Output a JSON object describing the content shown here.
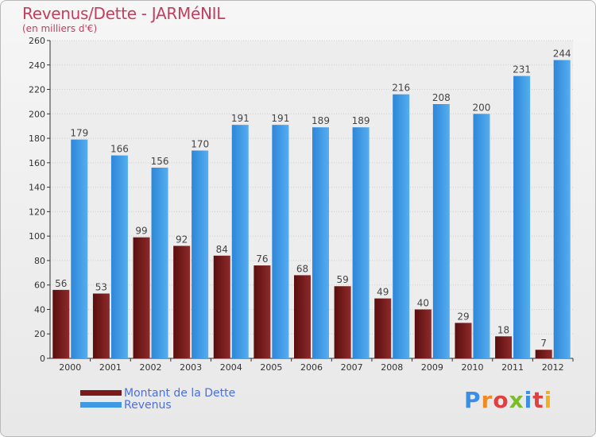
{
  "title": "Revenus/Dette - JARMéNIL",
  "subtitle": "(en milliers d'€)",
  "logo": {
    "text": "Proxiti",
    "letters": [
      "P",
      "r",
      "o",
      "x",
      "i",
      "t",
      "i"
    ],
    "colors": [
      "#3a8ee6",
      "#f08a24",
      "#e04040",
      "#7cbc2a",
      "#3a8ee6",
      "#e04040",
      "#f0b020"
    ]
  },
  "chart_data": {
    "type": "bar",
    "categories": [
      "2000",
      "2001",
      "2002",
      "2003",
      "2004",
      "2005",
      "2006",
      "2007",
      "2008",
      "2009",
      "2010",
      "2011",
      "2012"
    ],
    "series": [
      {
        "name": "Montant de la Dette",
        "color": "#7a1a1a",
        "values": [
          56,
          53,
          99,
          92,
          84,
          76,
          68,
          59,
          49,
          40,
          29,
          18,
          7
        ]
      },
      {
        "name": "Revenus",
        "color": "#3f9ae3",
        "values": [
          179,
          166,
          156,
          170,
          191,
          191,
          189,
          189,
          216,
          208,
          200,
          231,
          244
        ]
      }
    ],
    "yticks": [
      "0",
      "20",
      "40",
      "60",
      "80",
      "100",
      "120",
      "140",
      "160",
      "180",
      "200",
      "220",
      "240",
      "260"
    ],
    "ylim": [
      0,
      260
    ],
    "grid": true,
    "legend_position": "bottom-left"
  }
}
